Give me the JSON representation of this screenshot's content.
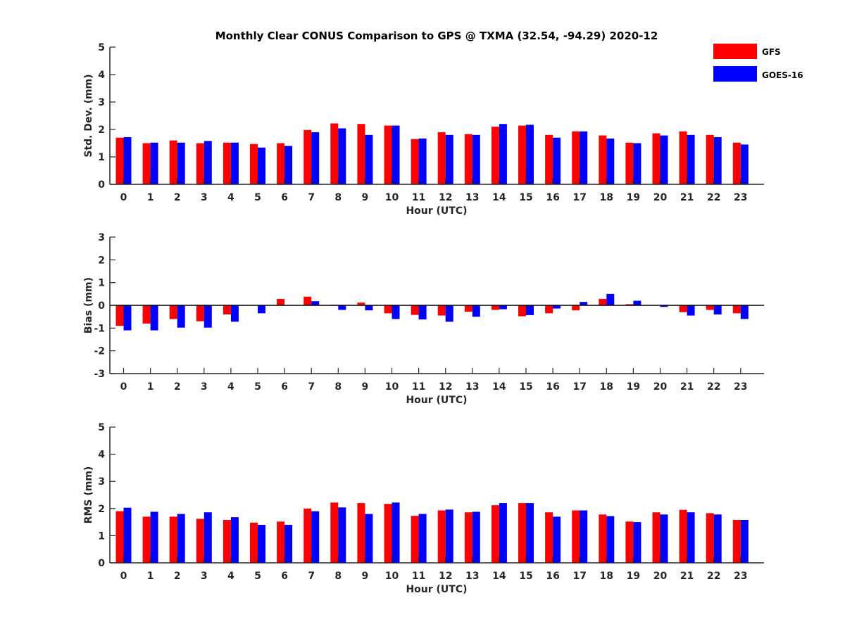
{
  "figure": {
    "title": "Monthly Clear CONUS Comparison to GPS @ TXMA (32.54, -94.29) 2020-12"
  },
  "legend": {
    "placement": "top-right",
    "entries": [
      {
        "label": "GFS",
        "color": "#ff0000"
      },
      {
        "label": "GOES-16",
        "color": "#0000ff"
      }
    ]
  },
  "chart_data": [
    {
      "type": "bar",
      "ylabel": "Std. Dev. (mm)",
      "xlabel": "Hour (UTC)",
      "ylim": [
        0,
        5
      ],
      "yticks": [
        0,
        1,
        2,
        3,
        4,
        5
      ],
      "categories": [
        "0",
        "1",
        "2",
        "3",
        "4",
        "5",
        "6",
        "7",
        "8",
        "9",
        "10",
        "11",
        "12",
        "13",
        "14",
        "15",
        "16",
        "17",
        "18",
        "19",
        "20",
        "21",
        "22",
        "23"
      ],
      "series": [
        {
          "name": "GFS",
          "color": "#ff0000",
          "values": [
            1.7,
            1.5,
            1.6,
            1.5,
            1.52,
            1.47,
            1.5,
            1.98,
            2.22,
            2.2,
            2.14,
            1.65,
            1.9,
            1.83,
            2.1,
            2.14,
            1.8,
            1.93,
            1.78,
            1.52,
            1.86,
            1.93,
            1.8,
            1.52
          ]
        },
        {
          "name": "GOES-16",
          "color": "#0000ff",
          "values": [
            1.72,
            1.52,
            1.52,
            1.58,
            1.52,
            1.34,
            1.4,
            1.9,
            2.04,
            1.8,
            2.14,
            1.67,
            1.8,
            1.8,
            2.2,
            2.17,
            1.7,
            1.93,
            1.67,
            1.5,
            1.78,
            1.8,
            1.72,
            1.45
          ]
        }
      ]
    },
    {
      "type": "bar",
      "ylabel": "Bias (mm)",
      "xlabel": "Hour (UTC)",
      "ylim": [
        -3,
        3
      ],
      "yticks": [
        -3,
        -2,
        -1,
        0,
        1,
        2,
        3
      ],
      "zero_line": true,
      "categories": [
        "0",
        "1",
        "2",
        "3",
        "4",
        "5",
        "6",
        "7",
        "8",
        "9",
        "10",
        "11",
        "12",
        "13",
        "14",
        "15",
        "16",
        "17",
        "18",
        "19",
        "20",
        "21",
        "22",
        "23"
      ],
      "series": [
        {
          "name": "GFS",
          "color": "#ff0000",
          "values": [
            -0.9,
            -0.8,
            -0.6,
            -0.7,
            -0.4,
            0.0,
            0.28,
            0.38,
            0.03,
            0.12,
            -0.35,
            -0.42,
            -0.45,
            -0.28,
            -0.2,
            -0.48,
            -0.35,
            -0.22,
            0.28,
            0.05,
            0.0,
            -0.3,
            -0.2,
            -0.35
          ]
        },
        {
          "name": "GOES-16",
          "color": "#0000ff",
          "values": [
            -1.1,
            -1.1,
            -0.98,
            -0.98,
            -0.72,
            -0.35,
            0.0,
            0.18,
            -0.2,
            -0.22,
            -0.6,
            -0.62,
            -0.72,
            -0.5,
            -0.17,
            -0.43,
            -0.14,
            0.15,
            0.5,
            0.2,
            -0.07,
            -0.45,
            -0.4,
            -0.6
          ]
        }
      ]
    },
    {
      "type": "bar",
      "ylabel": "RMS (mm)",
      "xlabel": "Hour (UTC)",
      "ylim": [
        0,
        5
      ],
      "yticks": [
        0,
        1,
        2,
        3,
        4,
        5
      ],
      "categories": [
        "0",
        "1",
        "2",
        "3",
        "4",
        "5",
        "6",
        "7",
        "8",
        "9",
        "10",
        "11",
        "12",
        "13",
        "14",
        "15",
        "16",
        "17",
        "18",
        "19",
        "20",
        "21",
        "22",
        "23"
      ],
      "series": [
        {
          "name": "GFS",
          "color": "#ff0000",
          "values": [
            1.9,
            1.7,
            1.7,
            1.62,
            1.58,
            1.48,
            1.52,
            2.0,
            2.22,
            2.2,
            2.17,
            1.73,
            1.93,
            1.86,
            2.12,
            2.2,
            1.86,
            1.93,
            1.78,
            1.52,
            1.86,
            1.95,
            1.83,
            1.58
          ]
        },
        {
          "name": "GOES-16",
          "color": "#0000ff",
          "values": [
            2.03,
            1.88,
            1.8,
            1.86,
            1.68,
            1.4,
            1.4,
            1.9,
            2.04,
            1.8,
            2.22,
            1.8,
            1.96,
            1.88,
            2.2,
            2.2,
            1.7,
            1.93,
            1.72,
            1.5,
            1.78,
            1.86,
            1.78,
            1.58
          ]
        }
      ]
    }
  ]
}
